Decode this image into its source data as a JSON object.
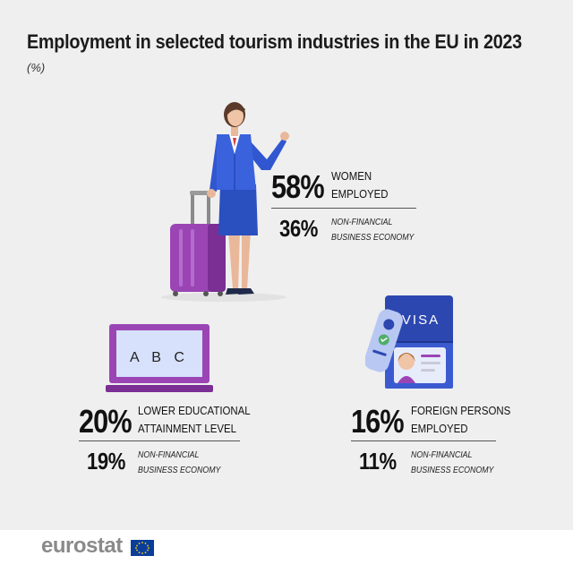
{
  "title": "Employment in selected tourism industries in the EU in 2023",
  "unit": "(%)",
  "stats": {
    "women": {
      "value": "58%",
      "label_line1": "WOMEN",
      "label_line2": "EMPLOYED",
      "comparison_value": "36%",
      "comparison_line1": "NON-FINANCIAL",
      "comparison_line2": "BUSINESS ECONOMY"
    },
    "education": {
      "value": "20%",
      "label_line1": "LOWER EDUCATIONAL",
      "label_line2": "ATTAINMENT LEVEL",
      "comparison_value": "19%",
      "comparison_line1": "NON-FINANCIAL",
      "comparison_line2": "BUSINESS ECONOMY"
    },
    "foreign": {
      "value": "16%",
      "label_line1": "FOREIGN PERSONS",
      "label_line2": "EMPLOYED",
      "comparison_value": "11%",
      "comparison_line1": "NON-FINANCIAL",
      "comparison_line2": "BUSINESS ECONOMY"
    }
  },
  "laptop_screen_text": "A B C",
  "passport_text": "VISA",
  "footer": {
    "brand": "eurostat"
  },
  "icons": [
    "woman-with-suitcase-icon",
    "laptop-icon",
    "visa-passport-icon",
    "eu-flag-icon"
  ]
}
